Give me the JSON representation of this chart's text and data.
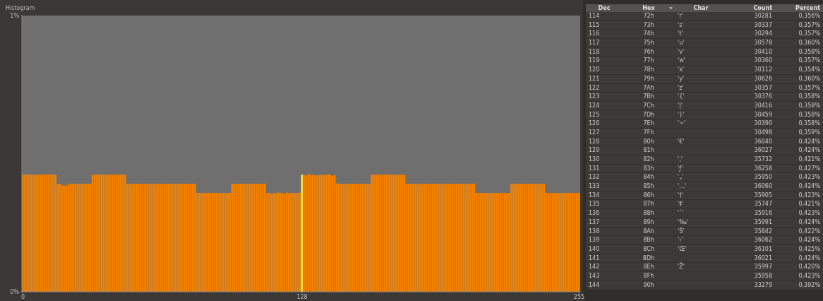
{
  "chart_data": {
    "type": "bar",
    "title": "Histogram",
    "x": [
      0,
      1,
      2,
      3,
      4,
      5,
      6,
      7,
      8,
      9,
      10,
      11,
      12,
      13,
      14,
      15,
      16,
      17,
      18,
      19,
      20,
      21,
      22,
      23,
      24,
      25,
      26,
      27,
      28,
      29,
      30,
      31,
      32,
      33,
      34,
      35,
      36,
      37,
      38,
      39,
      40,
      41,
      42,
      43,
      44,
      45,
      46,
      47,
      48,
      49,
      50,
      51,
      52,
      53,
      54,
      55,
      56,
      57,
      58,
      59,
      60,
      61,
      62,
      63,
      64,
      65,
      66,
      67,
      68,
      69,
      70,
      71,
      72,
      73,
      74,
      75,
      76,
      77,
      78,
      79,
      80,
      81,
      82,
      83,
      84,
      85,
      86,
      87,
      88,
      89,
      90,
      91,
      92,
      93,
      94,
      95,
      96,
      97,
      98,
      99,
      100,
      101,
      102,
      103,
      104,
      105,
      106,
      107,
      108,
      109,
      110,
      111,
      112,
      113,
      114,
      115,
      116,
      117,
      118,
      119,
      120,
      121,
      122,
      123,
      124,
      125,
      126,
      127,
      128,
      129,
      130,
      131,
      132,
      133,
      134,
      135,
      136,
      137,
      138,
      139,
      140,
      141,
      142,
      143,
      144,
      145,
      146,
      147,
      148,
      149,
      150,
      151,
      152,
      153,
      154,
      155,
      156,
      157,
      158,
      159,
      160,
      161,
      162,
      163,
      164,
      165,
      166,
      167,
      168,
      169,
      170,
      171,
      172,
      173,
      174,
      175,
      176,
      177,
      178,
      179,
      180,
      181,
      182,
      183,
      184,
      185,
      186,
      187,
      188,
      189,
      190,
      191,
      192,
      193,
      194,
      195,
      196,
      197,
      198,
      199,
      200,
      201,
      202,
      203,
      204,
      205,
      206,
      207,
      208,
      209,
      210,
      211,
      212,
      213,
      214,
      215,
      216,
      217,
      218,
      219,
      220,
      221,
      222,
      223,
      224,
      225,
      226,
      227,
      228,
      229,
      230,
      231,
      232,
      233,
      234,
      235,
      236,
      237,
      238,
      239,
      240,
      241,
      242,
      243,
      244,
      245,
      246,
      247,
      248,
      249,
      250,
      251,
      252,
      253,
      254,
      255
    ],
    "values": [
      0.424,
      0.424,
      0.424,
      0.424,
      0.424,
      0.424,
      0.424,
      0.424,
      0.424,
      0.424,
      0.424,
      0.424,
      0.424,
      0.424,
      0.424,
      0.424,
      0.391,
      0.391,
      0.385,
      0.385,
      0.385,
      0.391,
      0.391,
      0.391,
      0.391,
      0.391,
      0.391,
      0.391,
      0.391,
      0.391,
      0.391,
      0.391,
      0.424,
      0.424,
      0.424,
      0.424,
      0.424,
      0.424,
      0.424,
      0.424,
      0.424,
      0.424,
      0.424,
      0.424,
      0.424,
      0.424,
      0.424,
      0.424,
      0.391,
      0.391,
      0.391,
      0.391,
      0.391,
      0.391,
      0.391,
      0.391,
      0.391,
      0.391,
      0.391,
      0.391,
      0.391,
      0.391,
      0.391,
      0.391,
      0.391,
      0.391,
      0.391,
      0.391,
      0.391,
      0.391,
      0.391,
      0.391,
      0.391,
      0.391,
      0.391,
      0.391,
      0.391,
      0.391,
      0.391,
      0.391,
      0.358,
      0.358,
      0.358,
      0.358,
      0.358,
      0.358,
      0.358,
      0.358,
      0.358,
      0.358,
      0.358,
      0.358,
      0.358,
      0.358,
      0.358,
      0.358,
      0.391,
      0.391,
      0.391,
      0.391,
      0.391,
      0.391,
      0.391,
      0.391,
      0.391,
      0.391,
      0.391,
      0.391,
      0.391,
      0.391,
      0.391,
      0.391,
      0.358,
      0.358,
      0.356,
      0.357,
      0.357,
      0.36,
      0.358,
      0.357,
      0.354,
      0.36,
      0.357,
      0.358,
      0.358,
      0.358,
      0.358,
      0.359,
      0.424,
      0.424,
      0.421,
      0.427,
      0.423,
      0.424,
      0.423,
      0.421,
      0.423,
      0.424,
      0.422,
      0.424,
      0.425,
      0.424,
      0.42,
      0.423,
      0.392,
      0.391,
      0.391,
      0.391,
      0.391,
      0.391,
      0.391,
      0.391,
      0.391,
      0.391,
      0.391,
      0.391,
      0.391,
      0.391,
      0.391,
      0.391,
      0.424,
      0.424,
      0.424,
      0.424,
      0.424,
      0.424,
      0.424,
      0.424,
      0.424,
      0.424,
      0.424,
      0.424,
      0.424,
      0.424,
      0.424,
      0.424,
      0.391,
      0.391,
      0.391,
      0.391,
      0.391,
      0.391,
      0.391,
      0.391,
      0.391,
      0.391,
      0.391,
      0.391,
      0.391,
      0.391,
      0.391,
      0.391,
      0.391,
      0.391,
      0.391,
      0.391,
      0.391,
      0.391,
      0.391,
      0.391,
      0.391,
      0.391,
      0.391,
      0.391,
      0.391,
      0.391,
      0.391,
      0.391,
      0.358,
      0.358,
      0.358,
      0.358,
      0.358,
      0.358,
      0.358,
      0.358,
      0.358,
      0.358,
      0.358,
      0.358,
      0.358,
      0.358,
      0.358,
      0.358,
      0.391,
      0.391,
      0.391,
      0.391,
      0.391,
      0.391,
      0.391,
      0.391,
      0.391,
      0.391,
      0.391,
      0.391,
      0.391,
      0.391,
      0.391,
      0.391,
      0.358,
      0.358,
      0.358,
      0.358,
      0.358,
      0.358,
      0.358,
      0.358,
      0.358,
      0.358,
      0.358,
      0.358,
      0.358,
      0.358,
      0.358,
      0.358
    ],
    "colors": [
      "#f58200",
      "#f58200",
      "#f58200",
      "#f58200",
      "#f58200",
      "#f58200",
      "#f58200",
      "#f58200",
      "#f58200",
      "#f58200",
      "#f58200",
      "#f58200",
      "#f58200",
      "#f58200",
      "#f58200",
      "#f58200",
      "#f58200",
      "#f58200",
      "#f58200",
      "#f58200",
      "#f58200",
      "#f58200",
      "#f58200",
      "#f58200",
      "#f58200",
      "#f58200",
      "#f58200",
      "#f58200",
      "#f58200",
      "#f58200",
      "#f58200",
      "#f58200",
      "#f58200",
      "#f58200",
      "#f58200",
      "#f58200",
      "#f58200",
      "#f58200",
      "#f58200",
      "#f58200",
      "#f58200",
      "#f58200",
      "#f58200",
      "#f58200",
      "#f58200",
      "#f58200",
      "#f58200",
      "#f58200",
      "#f58200",
      "#f58200",
      "#f58200",
      "#f58200",
      "#f58200",
      "#f58200",
      "#f58200",
      "#f58200",
      "#f58200",
      "#f58200",
      "#f58200",
      "#f58200",
      "#f58200",
      "#f58200",
      "#f58200",
      "#f58200",
      "#f58200",
      "#f58200",
      "#f58200",
      "#f58200",
      "#f58200",
      "#f58200",
      "#f58200",
      "#f58200",
      "#f58200",
      "#f58200",
      "#f58200",
      "#f58200",
      "#f58200",
      "#f58200",
      "#f58200",
      "#f58200",
      "#f58200",
      "#f58200",
      "#f58200",
      "#f58200",
      "#f58200",
      "#f58200",
      "#f58200",
      "#f58200",
      "#f58200",
      "#f58200",
      "#f58200",
      "#f58200",
      "#f58200",
      "#f58200",
      "#f58200",
      "#f58200",
      "#f58200",
      "#f58200",
      "#f58200",
      "#f58200",
      "#f58200",
      "#f58200",
      "#f58200",
      "#f58200",
      "#f58200",
      "#f58200",
      "#f58200",
      "#f58200",
      "#f58200",
      "#f58200",
      "#f58200",
      "#f58200",
      "#f58200",
      "#f58200",
      "#f58200",
      "#f58200",
      "#f58200",
      "#f58200",
      "#f58200",
      "#f58200",
      "#f58200",
      "#f58200",
      "#f58200",
      "#f58200",
      "#f58200",
      "#f58200",
      "#f58200",
      "#f58200",
      "#ffe83a",
      "#f58200",
      "#f58200",
      "#f58200",
      "#f58200",
      "#f58200",
      "#f58200",
      "#f58200",
      "#f58200",
      "#f58200",
      "#f58200",
      "#f58200",
      "#f58200",
      "#f58200",
      "#f58200",
      "#f58200",
      "#f58200",
      "#f58200",
      "#f58200",
      "#f58200",
      "#f58200",
      "#f58200",
      "#f58200",
      "#f58200",
      "#f58200",
      "#f58200",
      "#f58200",
      "#f58200",
      "#f58200",
      "#f58200",
      "#f58200",
      "#f58200",
      "#f58200",
      "#f58200",
      "#f58200",
      "#f58200",
      "#f58200",
      "#f58200",
      "#f58200",
      "#f58200",
      "#f58200",
      "#f58200",
      "#f58200",
      "#f58200",
      "#f58200",
      "#f58200",
      "#f58200",
      "#f58200",
      "#f58200",
      "#f58200",
      "#f58200",
      "#f58200",
      "#f58200",
      "#f58200",
      "#f58200",
      "#f58200",
      "#f58200",
      "#f58200",
      "#f58200",
      "#f58200",
      "#f58200",
      "#f58200",
      "#f58200",
      "#f58200",
      "#f58200",
      "#f58200",
      "#f58200",
      "#f58200",
      "#f58200",
      "#f58200",
      "#f58200",
      "#f58200",
      "#f58200",
      "#f58200",
      "#f58200",
      "#f58200",
      "#f58200",
      "#f58200",
      "#f58200",
      "#f58200",
      "#f58200",
      "#f58200",
      "#f58200",
      "#f58200",
      "#f58200",
      "#f58200",
      "#f58200",
      "#f58200",
      "#f58200",
      "#f58200",
      "#f58200",
      "#f58200",
      "#f58200",
      "#f58200",
      "#f58200",
      "#f58200",
      "#f58200",
      "#f58200",
      "#f58200",
      "#f58200",
      "#f58200",
      "#f58200",
      "#f58200",
      "#f58200",
      "#f58200",
      "#f58200",
      "#f58200",
      "#f58200",
      "#f58200",
      "#f58200",
      "#f58200",
      "#f58200",
      "#f58200",
      "#f58200",
      "#f58200",
      "#f58200",
      "#f58200",
      "#f58200",
      "#f58200",
      "#f58200",
      "#f58200",
      "#f58200",
      "#f58200",
      "#f58200",
      "#f58200",
      "#f58200",
      "#f58200",
      "#f58200"
    ],
    "annotations": [
      "Dec",
      "Hex",
      "Char",
      "Count",
      "Percent",
      "114",
      "72h",
      "'r'",
      "30281",
      "0,356%",
      "115",
      "73h",
      "'s'",
      "30337",
      "0,357%",
      "116",
      "74h",
      "'t'",
      "30294",
      "0,357%",
      "117",
      "75h",
      "'u'",
      "30578",
      "0,360%",
      "118",
      "76h",
      "'v'",
      "30410",
      "0,358%",
      "119",
      "77h",
      "'w'",
      "30360",
      "0,357%",
      "120",
      "78h",
      "'x'",
      "30112",
      "0,354%",
      "121",
      "79h",
      "'y'",
      "30626",
      "0,360%",
      "122",
      "7Ah",
      "'z'",
      "30357",
      "0,357%",
      "123",
      "7Bh",
      "'{'",
      "30376",
      "0,358%",
      "124",
      "7Ch",
      "'|'",
      "30416",
      "0,358%",
      "125",
      "7Dh",
      "'}'",
      "30459",
      "0,358%",
      "126",
      "7Eh",
      "'~'",
      "30390",
      "0,358%",
      "127",
      "7Fh",
      null,
      "30498",
      "0,359%",
      "128",
      "80h",
      "'€'",
      "36040",
      "0,424%",
      "129",
      "81h",
      null,
      "36027",
      "0,424%",
      "130",
      "82h",
      "'‚'",
      "35732",
      "0,421%",
      "131",
      "83h",
      "'ƒ'",
      "36258",
      "0,427%",
      "132",
      "84h",
      "'„'",
      "35950",
      "0,423%",
      "133",
      "85h",
      "'…'",
      "36060",
      "0,424%",
      "134",
      "86h",
      "'†'",
      "35905",
      "0,423%",
      "135",
      "87h",
      "'‡'",
      "35747",
      "0,421%",
      "136",
      "88h",
      "'ˆ'",
      "35916",
      "0,423%",
      "137",
      "89h",
      "'‰'",
      "35991",
      "0,424%",
      "138",
      "8Ah",
      "'Š'",
      "35842",
      "0,422%",
      "139",
      "8Bh",
      "'‹'",
      "36062",
      "0,424%",
      "140",
      "8Ch",
      "'Œ'",
      "36101",
      "0,425%",
      "141",
      "8Dh",
      null,
      "36021",
      "0,424%",
      "142",
      "8Eh",
      "'Ž'",
      "35997",
      "0,420%",
      "143",
      "8Fh",
      null,
      "35958",
      "0,423%",
      "144",
      "90h",
      null,
      "33279",
      "0,392%"
    ],
    "xlim": [
      -0.5,
      255.5
    ],
    "xticks": [
      0,
      128,
      255
    ],
    "ylim": [
      0,
      1
    ],
    "yticks": [
      {
        "value": 0,
        "label": "0%"
      },
      {
        "value": 1,
        "label": "1%"
      }
    ]
  }
}
